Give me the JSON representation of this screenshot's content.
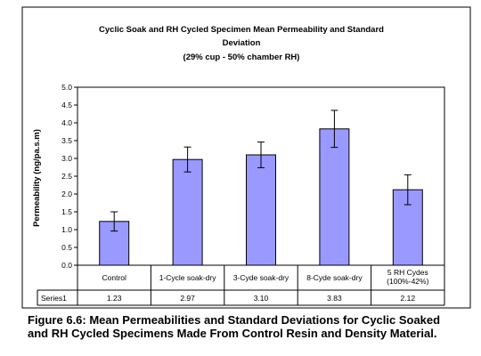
{
  "chart_data": {
    "type": "bar",
    "title_lines": [
      "Cyclic Soak and RH Cycled Specimen Mean Permeability and Standard",
      "Deviation",
      "(29% cup - 50% chamber RH)"
    ],
    "ylabel": "Permeability (ng/pa.s.m)",
    "xlabel": "",
    "ylim": [
      0,
      5.0
    ],
    "yticks": [
      "0.0",
      "0.5",
      "1.0",
      "1.5",
      "2.0",
      "2.5",
      "3.0",
      "3.5",
      "4.0",
      "4.5",
      "5.0"
    ],
    "grid": false,
    "categories": [
      [
        "Control"
      ],
      [
        "1-Cycle soak-dry"
      ],
      [
        "3-Cyde soak-dry"
      ],
      [
        "8-Cyde soak-dry"
      ],
      [
        "5 RH Cydes",
        "(100%-42%)"
      ]
    ],
    "series": [
      {
        "name": "Series1",
        "values": [
          1.23,
          2.97,
          3.1,
          3.83,
          2.12
        ],
        "value_labels": [
          "1.23",
          "2.97",
          "3.10",
          "3.83",
          "2.12"
        ],
        "error": [
          0.27,
          0.35,
          0.36,
          0.52,
          0.42
        ]
      }
    ],
    "colors": {
      "bar_fill": "#9999ff",
      "bar_stroke": "#000000",
      "plot_bg": "#ffffff",
      "frame": "#000000"
    }
  },
  "caption": {
    "line1": "Figure 6.6:  Mean Permeabilities and Standard Deviations for Cyclic Soaked",
    "line2": "and RH Cycled Specimens Made From Control Resin and Density Material."
  }
}
